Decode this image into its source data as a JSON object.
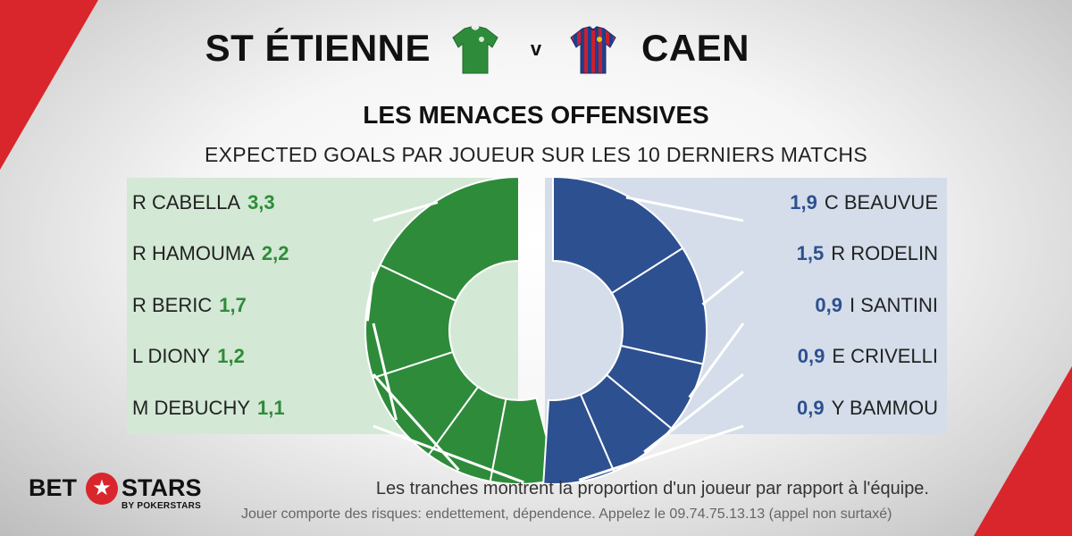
{
  "match": {
    "home": "ST ÉTIENNE",
    "versus": "v",
    "away": "CAEN"
  },
  "title": "LES MENACES OFFENSIVES",
  "subtitle": "EXPECTED GOALS PAR JOUEUR SUR LES 10 DERNIERS MATCHS",
  "colors": {
    "home": "#2e8b3a",
    "away": "#2d5090",
    "home_band": "#d3e8d5",
    "away_band": "#d4dde9",
    "rest": "#e4e4e4",
    "brand": "#d9262c"
  },
  "home_players": [
    {
      "name": "R CABELLA",
      "value": "3,3"
    },
    {
      "name": "R HAMOUMA",
      "value": "2,2"
    },
    {
      "name": "R BERIC",
      "value": "1,7"
    },
    {
      "name": "L DIONY",
      "value": "1,2"
    },
    {
      "name": "M DEBUCHY",
      "value": "1,1"
    }
  ],
  "away_players": [
    {
      "name": "C BEAUVUE",
      "value": "1,9"
    },
    {
      "name": "R RODELIN",
      "value": "1,5"
    },
    {
      "name": "I SANTINI",
      "value": "0,9"
    },
    {
      "name": "E CRIVELLI",
      "value": "0,9"
    },
    {
      "name": "Y BAMMOU",
      "value": "0,9"
    }
  ],
  "chart_data": {
    "type": "pie",
    "title": "LES MENACES OFFENSIVES",
    "subtitle": "EXPECTED GOALS PAR JOUEUR SUR LES 10 DERNIERS MATCHS",
    "series": [
      {
        "name": "ST ÉTIENNE",
        "categories": [
          "R CABELLA",
          "R HAMOUMA",
          "R BERIC",
          "L DIONY",
          "M DEBUCHY"
        ],
        "values": [
          3.3,
          2.2,
          1.7,
          1.2,
          1.1
        ],
        "share_of_team": [
          0.18,
          0.12,
          0.1,
          0.07,
          0.07
        ]
      },
      {
        "name": "CAEN",
        "categories": [
          "C BEAUVUE",
          "R RODELIN",
          "I SANTINI",
          "E CRIVELLI",
          "Y BAMMOU"
        ],
        "values": [
          1.9,
          1.5,
          0.9,
          0.9,
          0.9
        ],
        "share_of_team": [
          0.16,
          0.125,
          0.075,
          0.075,
          0.075
        ]
      }
    ]
  },
  "footnote": "Les tranches montrent la proportion d'un joueur par rapport à l'équipe.",
  "disclaimer": "Jouer comporte des risques: endettement, dépendence. Appelez le 09.74.75.13.13 (appel non surtaxé)",
  "brand": {
    "left": "BET",
    "right": "STARS",
    "sub": "BY POKERSTARS",
    "star": "★"
  }
}
